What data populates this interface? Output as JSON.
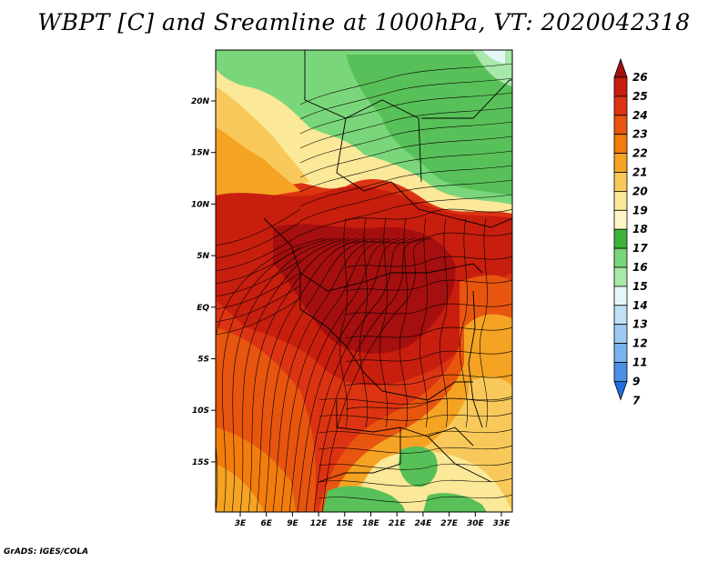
{
  "title": "WBPT [C] and Sreamline at 1000hPa, VT: 2020042318",
  "credit": "GrADS: IGES/COLA",
  "lat_ticks": [
    "20N",
    "15N",
    "10N",
    "5N",
    "EQ",
    "5S",
    "10S",
    "15S"
  ],
  "lon_ticks": [
    "3E",
    "6E",
    "9E",
    "12E",
    "15E",
    "18E",
    "21E",
    "24E",
    "27E",
    "30E",
    "33E"
  ],
  "colorbar": {
    "labels": [
      "26",
      "25",
      "24",
      "23",
      "22",
      "21",
      "20",
      "19",
      "18",
      "17",
      "16",
      "15",
      "14",
      "13",
      "12",
      "11",
      "9",
      "7"
    ],
    "colors": [
      "#a50f0f",
      "#c81e0e",
      "#dc3412",
      "#e8550f",
      "#f27d0c",
      "#f5a323",
      "#f8c95a",
      "#fbe898",
      "#fff6c8",
      "#3cb43c",
      "#7ad67a",
      "#a8e8a8",
      "#e6f7f7",
      "#bfe0f5",
      "#9ccaf2",
      "#78b3ee",
      "#4a90e6",
      "#1f6fe0"
    ]
  },
  "map": {
    "variable": "WBPT",
    "unit": "C",
    "level": "1000hPa",
    "valid_time": "2020042318"
  }
}
